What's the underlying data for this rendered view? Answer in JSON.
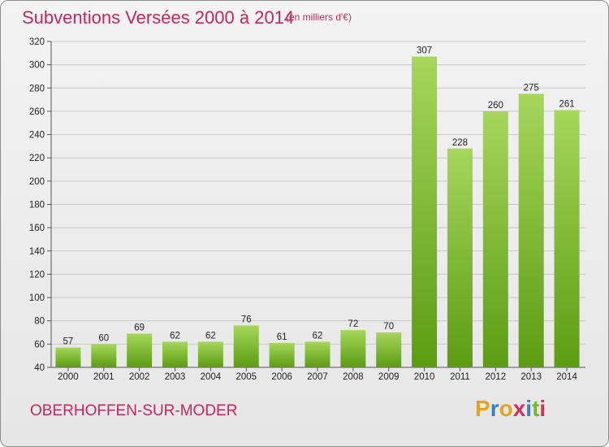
{
  "header": {
    "title": "Subventions Versées 2000 à 2014",
    "subtitle": "(en milliers d'€)"
  },
  "footer": {
    "commune": "OBERHOFFEN-SUR-MODER",
    "logo": [
      "P",
      "r",
      "o",
      "x",
      "i",
      "t",
      "i"
    ],
    "logo_colors": [
      "#e8a21b",
      "#3a7fc2",
      "#e8a21b",
      "#d1305e",
      "#3a7fc2",
      "#7ab52f",
      "#d1305e"
    ]
  },
  "colors": {
    "bar_light": "#a6d65a",
    "bar_dark": "#5c9c12",
    "grid": "#c9c9c9",
    "title": "#c4285a"
  },
  "chart_data": {
    "type": "bar",
    "categories": [
      "2000",
      "2001",
      "2002",
      "2003",
      "2004",
      "2005",
      "2006",
      "2007",
      "2008",
      "2009",
      "2010",
      "2011",
      "2012",
      "2013",
      "2014"
    ],
    "values": [
      57,
      60,
      69,
      62,
      62,
      76,
      61,
      62,
      72,
      70,
      307,
      228,
      260,
      275,
      261
    ],
    "ylim": [
      40,
      320
    ],
    "yticks": [
      40,
      60,
      80,
      100,
      120,
      140,
      160,
      180,
      200,
      220,
      240,
      260,
      280,
      300,
      320
    ],
    "grid": true
  }
}
